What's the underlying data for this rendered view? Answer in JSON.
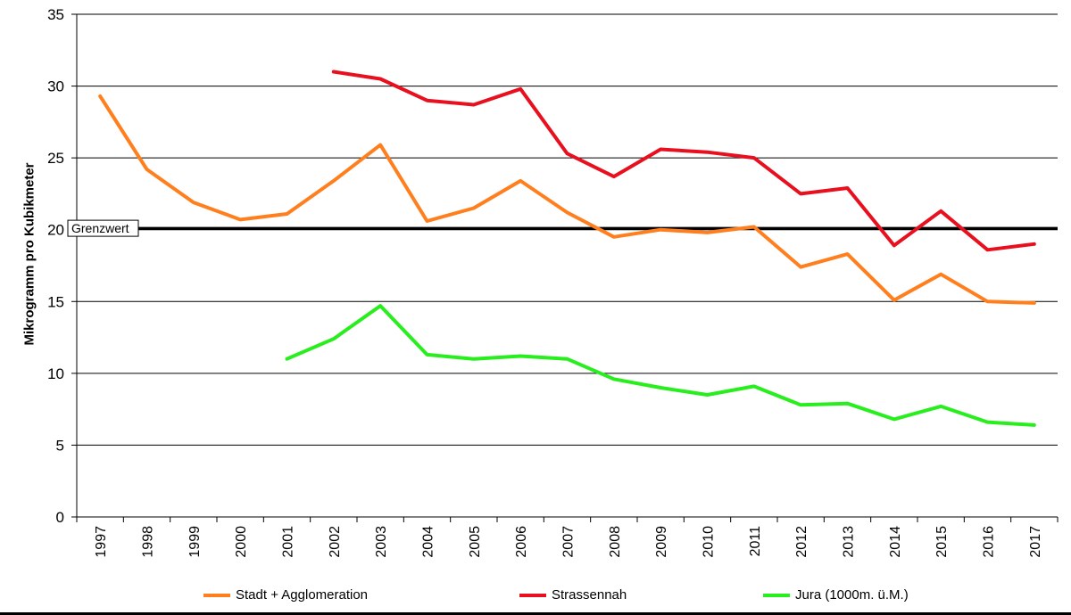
{
  "chart_data": {
    "type": "line",
    "title": "",
    "xlabel": "",
    "ylabel": "Mikrogramm pro Kubikmeter",
    "ylim": [
      0,
      35
    ],
    "yticks": [
      "0",
      "5",
      "10",
      "15",
      "20",
      "25",
      "30",
      "35"
    ],
    "categories": [
      "1997",
      "1998",
      "1999",
      "2000",
      "2001",
      "2002",
      "2003",
      "2004",
      "2005",
      "2006",
      "2007",
      "2008",
      "2009",
      "2010",
      "2011",
      "2012",
      "2013",
      "2014",
      "2015",
      "2016",
      "2017"
    ],
    "series": [
      {
        "name": "Stadt + Agglomeration",
        "color": "#ff7f1e",
        "values": [
          29.3,
          24.2,
          21.9,
          20.7,
          21.1,
          23.4,
          25.9,
          20.6,
          21.5,
          23.4,
          21.2,
          19.5,
          20.0,
          19.8,
          20.2,
          17.4,
          18.3,
          15.1,
          16.9,
          15.0,
          14.9
        ]
      },
      {
        "name": "Strassennah",
        "color": "#e8101e",
        "values": [
          null,
          null,
          null,
          null,
          null,
          31.0,
          30.5,
          29.0,
          28.7,
          29.8,
          25.3,
          23.7,
          25.6,
          25.4,
          25.0,
          22.5,
          22.9,
          18.9,
          21.3,
          18.6,
          19.0
        ]
      },
      {
        "name": "Jura (1000m. ü.M.)",
        "color": "#28ee1e",
        "values": [
          null,
          null,
          null,
          null,
          11.0,
          12.4,
          14.7,
          11.3,
          11.0,
          11.2,
          11.0,
          9.6,
          9.0,
          8.5,
          9.1,
          7.8,
          7.9,
          6.8,
          7.7,
          6.6,
          6.4
        ]
      }
    ],
    "reference_line": {
      "label": "Grenzwert",
      "value": 20.1,
      "color": "#000000"
    },
    "grid": true,
    "legend_position": "bottom"
  }
}
